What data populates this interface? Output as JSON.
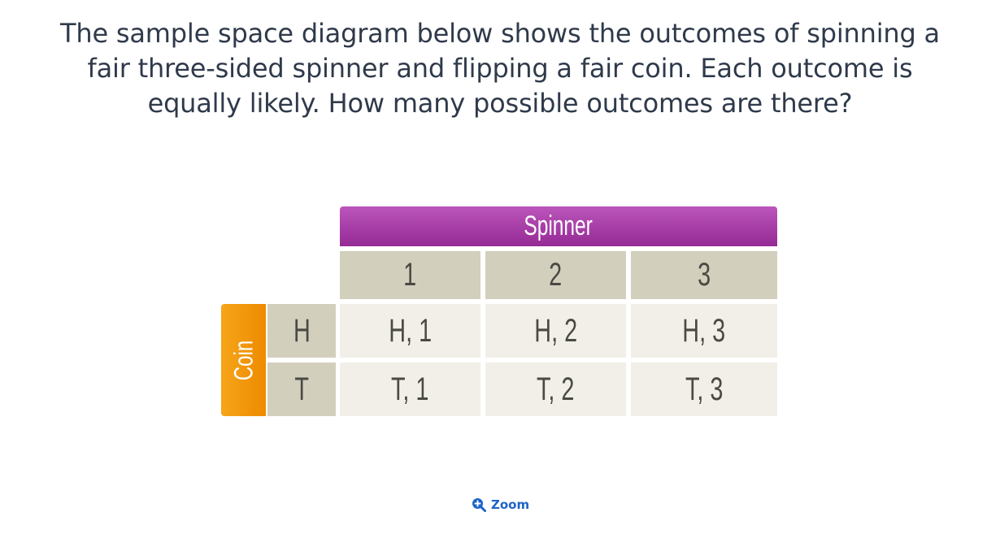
{
  "question": {
    "line1": "The sample space diagram below shows the outcomes of spinning a",
    "line2": "fair three-sided spinner and flipping a fair coin. Each outcome is",
    "line3": "equally likely. How many possible outcomes are there?"
  },
  "diagram": {
    "spinner_label": "Spinner",
    "coin_label": "Coin",
    "spinner_values": [
      "1",
      "2",
      "3"
    ],
    "coin_values": [
      "H",
      "T"
    ],
    "outcomes": [
      [
        "H, 1",
        "H, 2",
        "H, 3"
      ],
      [
        "T, 1",
        "T, 2",
        "T, 3"
      ]
    ],
    "colors": {
      "spinner_header": "#a63ca6",
      "coin_header": "#f29a0c",
      "label_cell": "#d3cfbd",
      "outcome_cell": "#f1efe8"
    }
  },
  "zoom": {
    "label": "Zoom",
    "icon": "zoom-in-icon"
  }
}
